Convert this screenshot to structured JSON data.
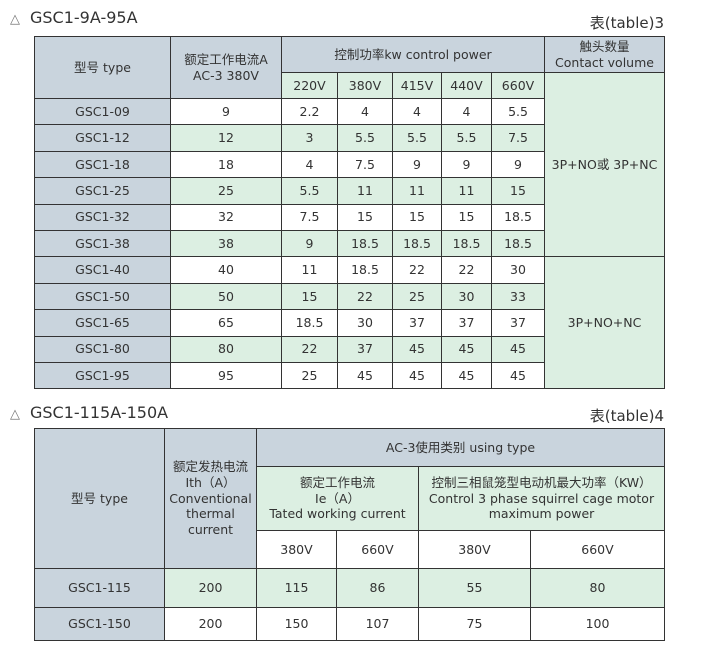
{
  "table3": {
    "title": "GSC1-9A-95A",
    "tag": "表(table)3",
    "h_type": "型号 type",
    "h_current_cn": "额定工作电流A",
    "h_current_en": "AC-3  380V",
    "h_power": "控制功率kw control power",
    "h_contact_cn": "触头数量",
    "h_contact_en": "Contact volume",
    "voltages": [
      "220V",
      "380V",
      "415V",
      "440V",
      "660V"
    ],
    "rows": [
      [
        "GSC1-09",
        "9",
        "2.2",
        "4",
        "4",
        "4",
        "5.5"
      ],
      [
        "GSC1-12",
        "12",
        "3",
        "5.5",
        "5.5",
        "5.5",
        "7.5"
      ],
      [
        "GSC1-18",
        "18",
        "4",
        "7.5",
        "9",
        "9",
        "9"
      ],
      [
        "GSC1-25",
        "25",
        "5.5",
        "11",
        "11",
        "11",
        "15"
      ],
      [
        "GSC1-32",
        "32",
        "7.5",
        "15",
        "15",
        "15",
        "18.5"
      ],
      [
        "GSC1-38",
        "38",
        "9",
        "18.5",
        "18.5",
        "18.5",
        "18.5"
      ],
      [
        "GSC1-40",
        "40",
        "11",
        "18.5",
        "22",
        "22",
        "30"
      ],
      [
        "GSC1-50",
        "50",
        "15",
        "22",
        "25",
        "30",
        "33"
      ],
      [
        "GSC1-65",
        "65",
        "18.5",
        "30",
        "37",
        "37",
        "37"
      ],
      [
        "GSC1-80",
        "80",
        "22",
        "37",
        "45",
        "45",
        "45"
      ],
      [
        "GSC1-95",
        "95",
        "25",
        "45",
        "45",
        "45",
        "45"
      ]
    ],
    "contact": [
      "3P+NO或 3P+NC",
      "3P+NO+NC"
    ]
  },
  "table4": {
    "title": "GSC1-115A-150A",
    "tag": "表(table)4",
    "h_type": "型号 type",
    "h_ith": [
      "额定发热电流",
      "Ith（A）",
      "Conventional",
      "thermal",
      "current"
    ],
    "h_ac3": "AC-3使用类别 using type",
    "h_ie": [
      "额定工作电流",
      "Ie（A）",
      "Tated working current"
    ],
    "h_kw": [
      "控制三相鼠笼型电动机最大功率（KW）",
      "Control 3 phase squirrel cage motor",
      "maximum power"
    ],
    "voltages": [
      "380V",
      "660V",
      "380V",
      "660V"
    ],
    "rows": [
      [
        "GSC1-115",
        "200",
        "115",
        "86",
        "55",
        "80"
      ],
      [
        "GSC1-150",
        "200",
        "150",
        "107",
        "75",
        "100"
      ]
    ]
  }
}
